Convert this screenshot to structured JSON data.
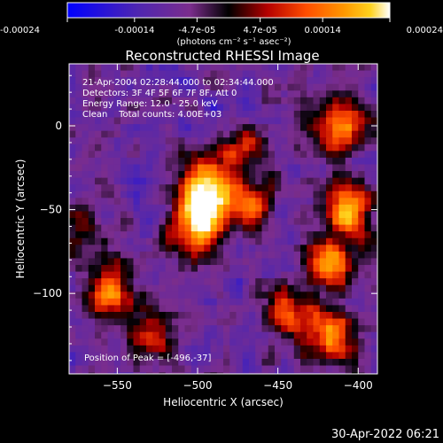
{
  "chart_data": {
    "type": "heatmap",
    "title": "Reconstructed RHESSI Image",
    "xlabel": "Heliocentric X (arcsec)",
    "ylabel": "Heliocentric Y (arcsec)",
    "xlim": [
      -580,
      -388
    ],
    "ylim": [
      -148,
      37
    ],
    "xticks": [
      -550,
      -500,
      -450,
      -400
    ],
    "yticks": [
      0,
      -50,
      -100
    ],
    "grid": false,
    "colorbar": {
      "placement": "top",
      "range": [
        -0.00024,
        0.00024
      ],
      "tick_labels": [
        "-0.00024",
        "-0.00014",
        "-4.7e-05",
        "4.7e-05",
        "0.00014",
        "0.00024"
      ],
      "unit_label": "(photons cm⁻² s⁻¹ asec⁻²)",
      "colormap": [
        "#0000ff",
        "#4f26b0",
        "#7b2d8d",
        "#000000",
        "#b40000",
        "#ff4d00",
        "#ff9900",
        "#ffd21e",
        "#ffffff"
      ]
    },
    "info_lines": [
      "21-Apr-2004 02:28:44.000 to 02:34:44.000",
      "Detectors: 3F 4F 5F 6F 7F 8F, Att 0",
      "Energy Range: 12.0 - 25.0 keV",
      "Clean    Total counts: 4.00E+03"
    ],
    "peak_label": "Position of Peak = [-496,-37]",
    "peak_position": [
      -496,
      -37
    ],
    "sources": [
      {
        "x": -496,
        "y": -37,
        "amp": 1.0
      },
      {
        "x": -500,
        "y": -62,
        "amp": 0.8
      },
      {
        "x": -468,
        "y": -48,
        "amp": 0.55
      },
      {
        "x": -405,
        "y": -50,
        "amp": 0.8
      },
      {
        "x": -410,
        "y": 0,
        "amp": 0.75
      },
      {
        "x": -418,
        "y": -82,
        "amp": 0.7
      },
      {
        "x": -418,
        "y": -125,
        "amp": 0.65
      },
      {
        "x": -555,
        "y": -100,
        "amp": 0.6
      },
      {
        "x": -530,
        "y": -125,
        "amp": 0.45
      },
      {
        "x": -470,
        "y": -15,
        "amp": 0.4
      },
      {
        "x": -445,
        "y": -110,
        "amp": 0.5
      },
      {
        "x": -575,
        "y": -65,
        "amp": 0.35
      }
    ]
  },
  "footer": {
    "timestamp": "30-Apr-2022 06:21"
  }
}
